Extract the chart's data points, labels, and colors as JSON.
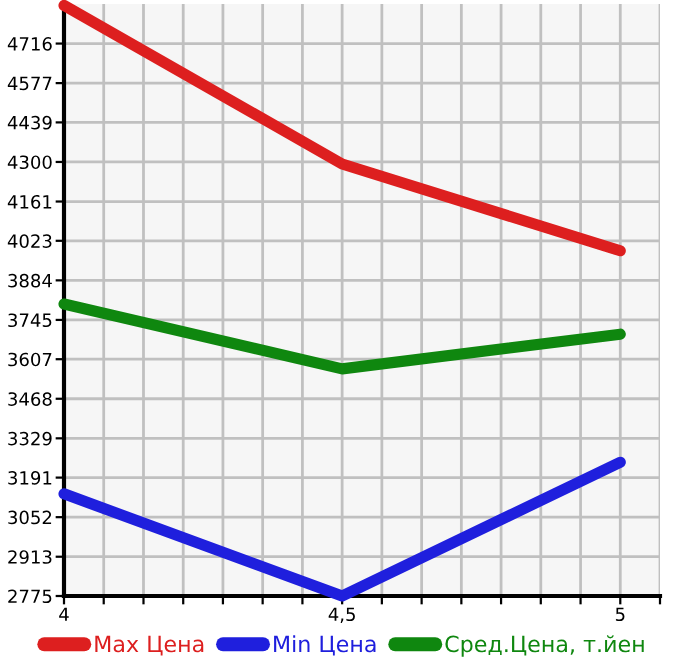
{
  "chart_data": {
    "type": "line",
    "x": [
      4,
      4.5,
      5
    ],
    "series": [
      {
        "name": "Max Цена",
        "color": "#dd1f1f",
        "values": [
          4850,
          4293,
          3988
        ]
      },
      {
        "name": "Min Цена",
        "color": "#1f1fdd",
        "values": [
          3134,
          2775,
          3245
        ]
      },
      {
        "name": "Сред.Цена, т.йен",
        "color": "#0f870f",
        "values": [
          3801,
          3573,
          3695
        ]
      }
    ],
    "xlim": [
      4,
      5.0714
    ],
    "xticks": [
      4,
      {
        "value": 4.0714,
        "label": null
      },
      {
        "value": 4.1429,
        "label": null
      },
      {
        "value": 4.2143,
        "label": null
      },
      {
        "value": 4.2857,
        "label": null
      },
      {
        "value": 4.3571,
        "label": null
      },
      {
        "value": 4.4286,
        "label": null
      },
      {
        "value": 4.5,
        "label": "4,5"
      },
      {
        "value": 4.5714,
        "label": null
      },
      {
        "value": 4.6429,
        "label": null
      },
      {
        "value": 4.7143,
        "label": null
      },
      {
        "value": 4.7857,
        "label": null
      },
      {
        "value": 4.8571,
        "label": null
      },
      {
        "value": 4.9286,
        "label": null
      },
      5,
      {
        "value": 5.0714,
        "label": null
      }
    ],
    "ylim": [
      2775,
      4855
    ],
    "yticks": [
      2775,
      2913,
      3052,
      3191,
      3329,
      3468,
      3607,
      3745,
      3884,
      4023,
      4161,
      4300,
      4439,
      4577,
      4716
    ],
    "grid": true,
    "legend": "bottom",
    "marker": "none",
    "line_style": "solid"
  }
}
